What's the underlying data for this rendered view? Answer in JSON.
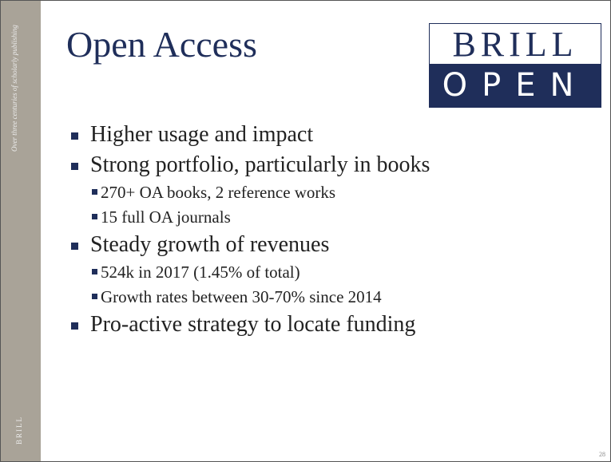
{
  "sidebar": {
    "tagline": "Over three centuries of scholarly publishing",
    "brand": "BRILL"
  },
  "title": "Open Access",
  "logo": {
    "top": "BRILL",
    "bottom": "OPEN"
  },
  "bullets": [
    {
      "text": "Higher usage and impact",
      "sub": []
    },
    {
      "text": "Strong portfolio, particularly in books",
      "sub": [
        "270+ OA books, 2 reference works",
        "15 full OA journals"
      ]
    },
    {
      "text": "Steady growth of revenues",
      "sub": [
        "524k in 2017 (1.45% of total)",
        "Growth rates between 30-70% since 2014"
      ]
    },
    {
      "text": "Pro-active strategy to locate funding",
      "sub": []
    }
  ],
  "page_number": "28"
}
